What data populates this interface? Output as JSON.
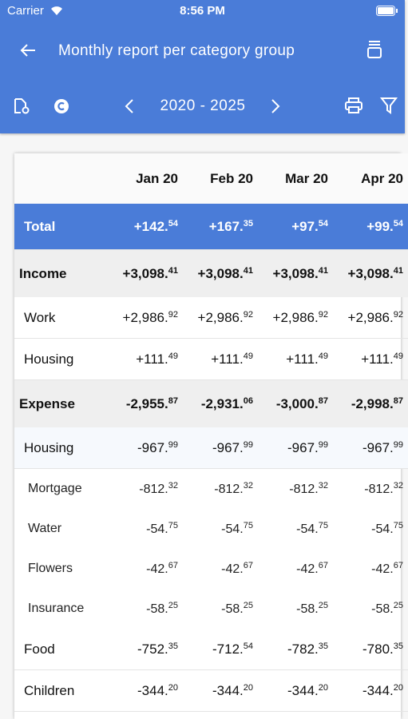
{
  "status_bar": {
    "carrier": "Carrier",
    "time": "8:56 PM"
  },
  "header": {
    "title": "Monthly report per category group",
    "period": "2020 - 2025"
  },
  "table": {
    "columns": [
      "Jan 20",
      "Feb 20",
      "Mar 20",
      "Apr 20"
    ],
    "total": {
      "label": "Total",
      "values": [
        "+142.54",
        "+167.35",
        "+97.54",
        "+99.54"
      ]
    },
    "groups": [
      {
        "label": "Income",
        "values": [
          "+3,098.41",
          "+3,098.41",
          "+3,098.41",
          "+3,098.41"
        ],
        "rows": [
          {
            "label": "Work",
            "values": [
              "+2,986.92",
              "+2,986.92",
              "+2,986.92",
              "+2,986.92"
            ]
          },
          {
            "label": "Housing",
            "values": [
              "+111.49",
              "+111.49",
              "+111.49",
              "+111.49"
            ]
          }
        ]
      },
      {
        "label": "Expense",
        "values": [
          "-2,955.87",
          "-2,931.06",
          "-3,000.87",
          "-2,998.87"
        ],
        "rows": [
          {
            "label": "Housing",
            "values": [
              "-967.99",
              "-967.99",
              "-967.99",
              "-967.99"
            ],
            "items": [
              {
                "label": "Mortgage",
                "values": [
                  "-812.32",
                  "-812.32",
                  "-812.32",
                  "-812.32"
                ]
              },
              {
                "label": "Water",
                "values": [
                  "-54.75",
                  "-54.75",
                  "-54.75",
                  "-54.75"
                ]
              },
              {
                "label": "Flowers",
                "values": [
                  "-42.67",
                  "-42.67",
                  "-42.67",
                  "-42.67"
                ]
              },
              {
                "label": "Insurance",
                "values": [
                  "-58.25",
                  "-58.25",
                  "-58.25",
                  "-58.25"
                ]
              }
            ]
          },
          {
            "label": "Food",
            "values": [
              "-752.35",
              "-712.54",
              "-782.35",
              "-780.35"
            ]
          },
          {
            "label": "Children",
            "values": [
              "-344.20",
              "-344.20",
              "-344.20",
              "-344.20"
            ]
          }
        ]
      }
    ]
  }
}
